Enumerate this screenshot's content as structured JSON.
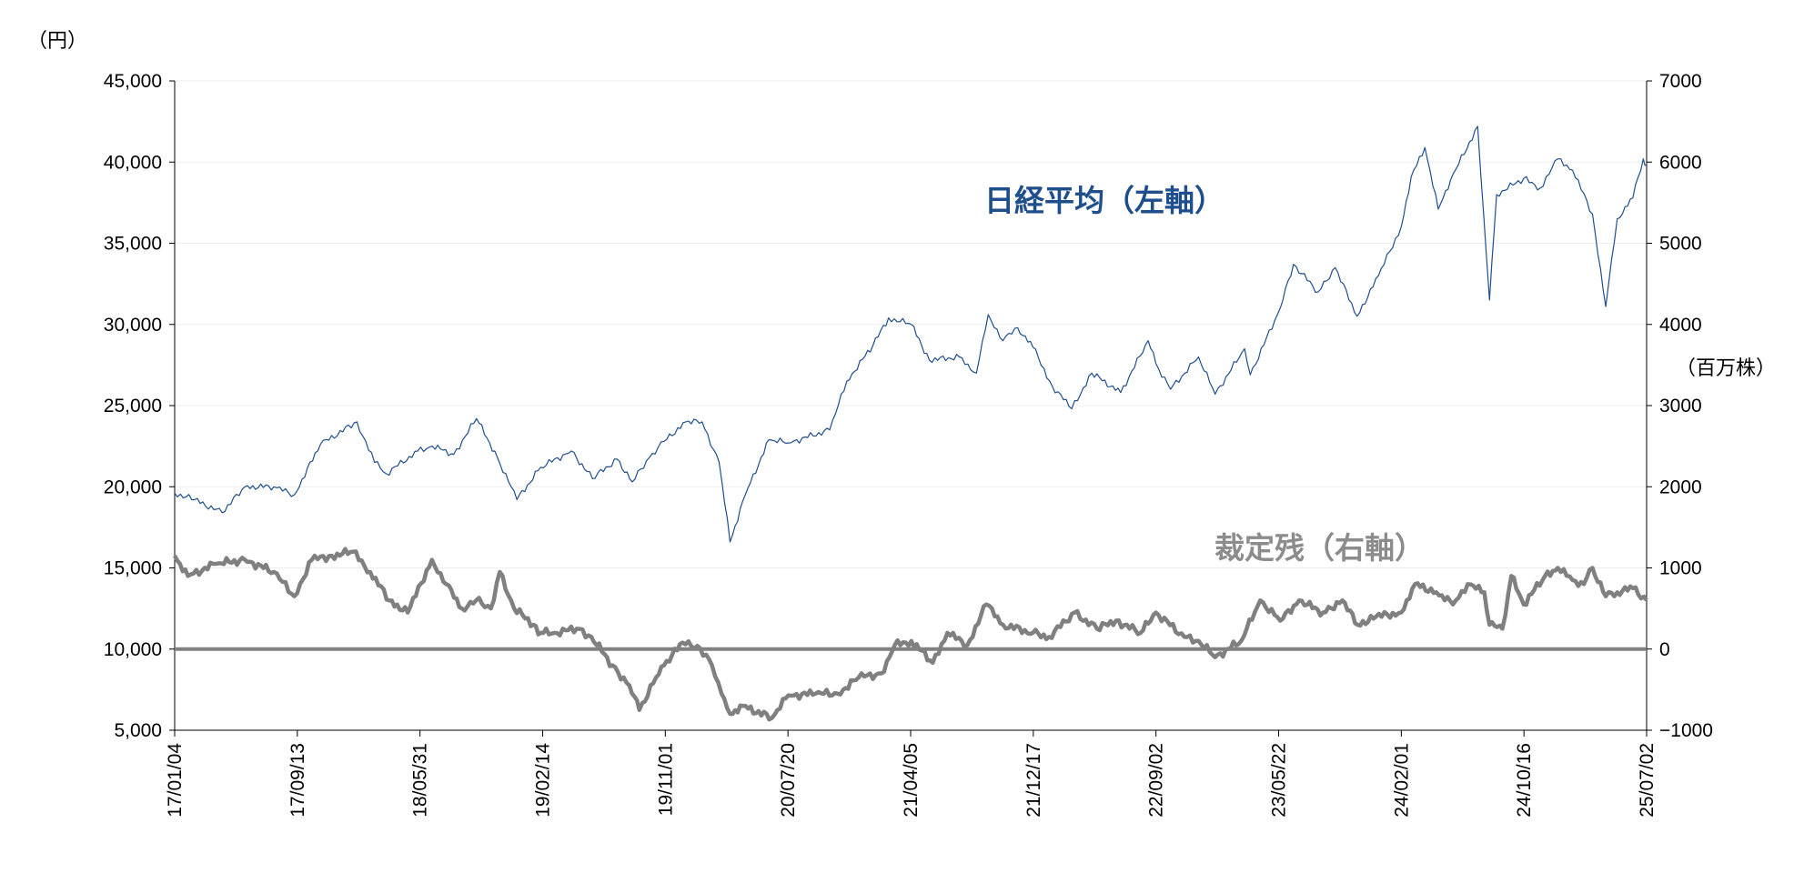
{
  "chart_data": {
    "type": "line",
    "y_left": {
      "unit": "（円）",
      "ticks": [
        "45,000",
        "40,000",
        "35,000",
        "30,000",
        "25,000",
        "20,000",
        "15,000",
        "10,000",
        "5,000"
      ],
      "ylim": [
        5000,
        45000
      ]
    },
    "y_right": {
      "unit": "（百万株）",
      "ticks": [
        "7000",
        "6000",
        "5000",
        "4000",
        "3000",
        "2000",
        "1000",
        "0",
        "−1000"
      ],
      "ylim": [
        -1000,
        7000
      ]
    },
    "x_ticks": [
      "17/01/04",
      "17/09/13",
      "18/05/31",
      "19/02/14",
      "19/11/01",
      "20/07/20",
      "21/04/05",
      "21/12/17",
      "22/09/02",
      "23/05/22",
      "24/02/01",
      "24/10/16",
      "25/07/02"
    ],
    "grid": true,
    "zero_line_right": 0,
    "series": [
      {
        "name": "日経平均（左軸）",
        "axis": "left",
        "color": "#1f4e8c",
        "points": [
          [
            "17/01/04",
            19600
          ],
          [
            "17/02/15",
            19200
          ],
          [
            "17/04/14",
            18400
          ],
          [
            "17/06/01",
            20000
          ],
          [
            "17/08/01",
            20000
          ],
          [
            "17/09/13",
            19500
          ],
          [
            "17/11/07",
            22600
          ],
          [
            "18/01/23",
            24000
          ],
          [
            "18/03/01",
            21500
          ],
          [
            "18/03/26",
            20800
          ],
          [
            "18/05/31",
            22200
          ],
          [
            "18/07/01",
            22500
          ],
          [
            "18/08/15",
            22000
          ],
          [
            "18/10/02",
            24200
          ],
          [
            "18/11/15",
            21800
          ],
          [
            "18/12/26",
            19200
          ],
          [
            "19/02/14",
            21200
          ],
          [
            "19/04/20",
            22200
          ],
          [
            "19/06/03",
            20500
          ],
          [
            "19/07/25",
            21700
          ],
          [
            "19/08/26",
            20300
          ],
          [
            "19/10/01",
            21800
          ],
          [
            "19/11/01",
            22800
          ],
          [
            "19/12/17",
            24000
          ],
          [
            "20/01/20",
            24000
          ],
          [
            "20/02/25",
            21500
          ],
          [
            "20/03/19",
            16600
          ],
          [
            "20/04/20",
            19500
          ],
          [
            "20/06/09",
            22900
          ],
          [
            "20/07/20",
            22700
          ],
          [
            "20/10/15",
            23500
          ],
          [
            "20/11/20",
            26500
          ],
          [
            "21/01/14",
            28700
          ],
          [
            "21/02/16",
            30400
          ],
          [
            "21/04/05",
            30000
          ],
          [
            "21/05/13",
            27800
          ],
          [
            "21/07/15",
            28000
          ],
          [
            "21/08/20",
            27000
          ],
          [
            "21/09/14",
            30600
          ],
          [
            "21/10/15",
            29000
          ],
          [
            "21/11/15",
            29800
          ],
          [
            "21/12/17",
            28600
          ],
          [
            "22/01/27",
            26200
          ],
          [
            "22/03/09",
            24800
          ],
          [
            "22/04/20",
            27000
          ],
          [
            "22/06/20",
            25800
          ],
          [
            "22/08/17",
            29000
          ],
          [
            "22/09/02",
            27600
          ],
          [
            "22/10/03",
            26000
          ],
          [
            "22/12/01",
            28000
          ],
          [
            "23/01/05",
            25700
          ],
          [
            "23/03/08",
            28500
          ],
          [
            "23/03/20",
            26900
          ],
          [
            "23/05/22",
            31000
          ],
          [
            "23/06/19",
            33700
          ],
          [
            "23/08/10",
            32000
          ],
          [
            "23/09/15",
            33500
          ],
          [
            "23/10/31",
            30500
          ],
          [
            "23/12/15",
            33000
          ],
          [
            "24/02/01",
            36000
          ],
          [
            "24/02/22",
            39100
          ],
          [
            "24/03/22",
            40900
          ],
          [
            "24/04/19",
            37100
          ],
          [
            "24/05/15",
            38900
          ],
          [
            "24/07/11",
            42200
          ],
          [
            "24/08/05",
            31500
          ],
          [
            "24/08/20",
            38000
          ],
          [
            "24/10/16",
            39000
          ],
          [
            "24/11/20",
            38400
          ],
          [
            "24/12/27",
            40200
          ],
          [
            "25/01/27",
            39500
          ],
          [
            "25/03/10",
            36800
          ],
          [
            "25/04/07",
            31100
          ],
          [
            "25/05/01",
            36500
          ],
          [
            "25/06/03",
            37800
          ],
          [
            "25/06/25",
            40200
          ],
          [
            "25/07/02",
            39800
          ]
        ]
      },
      {
        "name": "裁定残（右軸）",
        "axis": "right",
        "color": "#808080",
        "points": [
          [
            "17/01/04",
            1150
          ],
          [
            "17/02/01",
            900
          ],
          [
            "17/04/01",
            1050
          ],
          [
            "17/06/01",
            1100
          ],
          [
            "17/08/01",
            950
          ],
          [
            "17/09/13",
            650
          ],
          [
            "17/10/20",
            1100
          ],
          [
            "17/12/01",
            1150
          ],
          [
            "18/01/15",
            1200
          ],
          [
            "18/02/20",
            950
          ],
          [
            "18/04/01",
            600
          ],
          [
            "18/05/10",
            450
          ],
          [
            "18/06/30",
            1100
          ],
          [
            "18/07/30",
            800
          ],
          [
            "18/09/01",
            500
          ],
          [
            "18/10/01",
            600
          ],
          [
            "18/11/01",
            500
          ],
          [
            "18/11/20",
            950
          ],
          [
            "18/12/20",
            500
          ],
          [
            "19/01/30",
            300
          ],
          [
            "19/02/14",
            200
          ],
          [
            "19/03/15",
            200
          ],
          [
            "19/05/01",
            250
          ],
          [
            "19/06/01",
            150
          ],
          [
            "19/07/15",
            -200
          ],
          [
            "19/08/20",
            -450
          ],
          [
            "19/09/10",
            -750
          ],
          [
            "19/10/15",
            -350
          ],
          [
            "19/11/01",
            -200
          ],
          [
            "19/12/10",
            80
          ],
          [
            "20/01/10",
            40
          ],
          [
            "20/02/10",
            -200
          ],
          [
            "20/03/01",
            -550
          ],
          [
            "20/03/19",
            -800
          ],
          [
            "20/04/15",
            -700
          ],
          [
            "20/06/15",
            -850
          ],
          [
            "20/07/20",
            -570
          ],
          [
            "20/09/15",
            -550
          ],
          [
            "20/11/01",
            -550
          ],
          [
            "20/12/15",
            -350
          ],
          [
            "21/02/01",
            -300
          ],
          [
            "21/03/01",
            50
          ],
          [
            "21/04/05",
            100
          ],
          [
            "21/05/20",
            -170
          ],
          [
            "21/06/20",
            200
          ],
          [
            "21/08/01",
            50
          ],
          [
            "21/09/10",
            550
          ],
          [
            "21/10/15",
            300
          ],
          [
            "21/12/17",
            200
          ],
          [
            "22/01/20",
            150
          ],
          [
            "22/03/15",
            450
          ],
          [
            "22/05/01",
            250
          ],
          [
            "22/06/10",
            350
          ],
          [
            "22/08/01",
            200
          ],
          [
            "22/09/02",
            450
          ],
          [
            "22/11/01",
            150
          ],
          [
            "22/12/01",
            100
          ],
          [
            "23/01/05",
            -100
          ],
          [
            "23/03/01",
            100
          ],
          [
            "23/04/10",
            600
          ],
          [
            "23/05/22",
            350
          ],
          [
            "23/07/01",
            600
          ],
          [
            "23/08/20",
            450
          ],
          [
            "23/09/30",
            600
          ],
          [
            "23/11/01",
            300
          ],
          [
            "23/12/10",
            400
          ],
          [
            "24/02/01",
            450
          ],
          [
            "24/03/01",
            800
          ],
          [
            "24/04/15",
            700
          ],
          [
            "24/05/20",
            550
          ],
          [
            "24/06/20",
            800
          ],
          [
            "24/07/25",
            700
          ],
          [
            "24/08/05",
            300
          ],
          [
            "24/09/01",
            250
          ],
          [
            "24/09/20",
            900
          ],
          [
            "24/10/16",
            550
          ],
          [
            "24/11/30",
            900
          ],
          [
            "24/12/27",
            1000
          ],
          [
            "25/01/27",
            850
          ],
          [
            "25/02/20",
            800
          ],
          [
            "25/03/10",
            1000
          ],
          [
            "25/04/07",
            650
          ],
          [
            "25/05/01",
            700
          ],
          [
            "25/06/03",
            750
          ],
          [
            "25/07/02",
            600
          ]
        ]
      }
    ],
    "annotations": [
      {
        "text": "日経平均（左軸）",
        "color": "#1f4e8c"
      },
      {
        "text": "裁定残（右軸）",
        "color": "#8c8c8c"
      }
    ]
  }
}
